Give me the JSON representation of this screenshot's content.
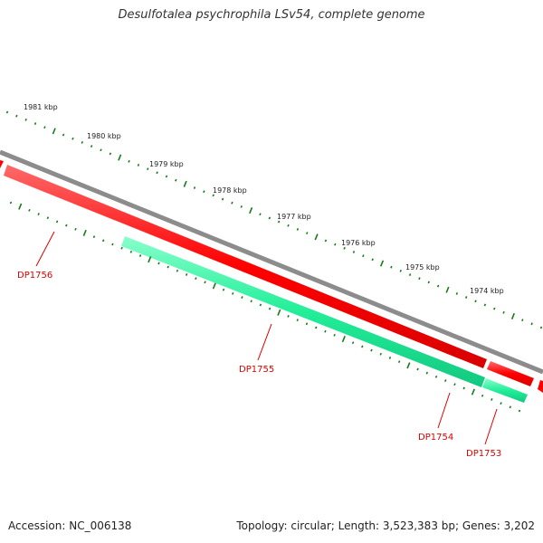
{
  "title": "Desulfotalea psychrophila LSv54, complete genome",
  "footer": {
    "accession": "Accession: NC_006138",
    "summary": "Topology: circular; Length: 3,523,383 bp; Genes: 3,202"
  },
  "colors": {
    "backbone": "#8c8c8c",
    "forward_gene": "#ff0000",
    "reverse_gene": "#22ee99",
    "tick": "#1a7a1a",
    "label": "#dd0000"
  },
  "kbp_labels": [
    "1981 kbp",
    "1980 kbp",
    "1979 kbp",
    "1978 kbp",
    "1977 kbp",
    "1976 kbp",
    "1975 kbp",
    "1974 kbp"
  ],
  "genes": [
    {
      "label": "DP1756",
      "strand": "forward"
    },
    {
      "label": "DP1755",
      "strand": "reverse"
    },
    {
      "label": "DP1754",
      "strand": "forward"
    },
    {
      "label": "DP1753",
      "strand": "reverse"
    }
  ]
}
